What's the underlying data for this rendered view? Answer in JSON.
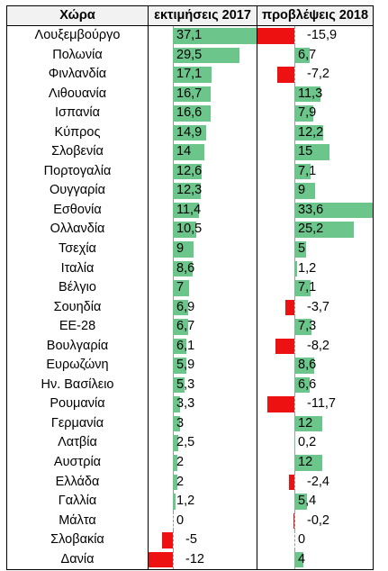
{
  "table": {
    "headers": [
      "Χώρα",
      "εκτιμήσεις 2017",
      "προβλέψεις 2018"
    ],
    "colors": {
      "positive": "#6cc58a",
      "negative": "#ee1111"
    },
    "rows": [
      {
        "country": "Λουξεμβούργο",
        "e2017": "37,1",
        "p2018": "-15,9"
      },
      {
        "country": "Πολωνία",
        "e2017": "29,5",
        "p2018": "6,7"
      },
      {
        "country": "Φινλανδία",
        "e2017": "17,1",
        "p2018": "-7,2"
      },
      {
        "country": "Λιθουανία",
        "e2017": "16,7",
        "p2018": "11,3"
      },
      {
        "country": "Ισπανία",
        "e2017": "16,6",
        "p2018": "7,9"
      },
      {
        "country": "Κύπρος",
        "e2017": "14,9",
        "p2018": "12,2"
      },
      {
        "country": "Σλοβενία",
        "e2017": "14",
        "p2018": "15"
      },
      {
        "country": "Πορτογαλία",
        "e2017": "12,6",
        "p2018": "7,1"
      },
      {
        "country": "Ουγγαρία",
        "e2017": "12,3",
        "p2018": "9"
      },
      {
        "country": "Εσθονία",
        "e2017": "11,4",
        "p2018": "33,6"
      },
      {
        "country": "Ολλανδία",
        "e2017": "10,5",
        "p2018": "25,2"
      },
      {
        "country": "Τσεχία",
        "e2017": "9",
        "p2018": "5"
      },
      {
        "country": "Ιταλία",
        "e2017": "8,6",
        "p2018": "1,2"
      },
      {
        "country": "Βέλγιο",
        "e2017": "7",
        "p2018": "7,1"
      },
      {
        "country": "Σουηδία",
        "e2017": "6,9",
        "p2018": "-3,7"
      },
      {
        "country": "ΕΕ-28",
        "e2017": "6,7",
        "p2018": "7,3"
      },
      {
        "country": "Βουλγαρία",
        "e2017": "6,1",
        "p2018": "-8,2"
      },
      {
        "country": "Ευρωζώνη",
        "e2017": "5,9",
        "p2018": "8,6"
      },
      {
        "country": "Ην. Βασίλειο",
        "e2017": "5,3",
        "p2018": "6,6"
      },
      {
        "country": "Ρουμανία",
        "e2017": "3,3",
        "p2018": "-11,7"
      },
      {
        "country": "Γερμανία",
        "e2017": "3",
        "p2018": "12"
      },
      {
        "country": "Λατβία",
        "e2017": "2,5",
        "p2018": "0,2"
      },
      {
        "country": "Αυστρία",
        "e2017": "2",
        "p2018": "12"
      },
      {
        "country": "Ελλάδα",
        "e2017": "2",
        "p2018": "-2,4"
      },
      {
        "country": "Γαλλία",
        "e2017": "1,2",
        "p2018": "5,4"
      },
      {
        "country": "Μάλτα",
        "e2017": "0",
        "p2018": "-0,2"
      },
      {
        "country": "Σλοβακία",
        "e2017": "-5",
        "p2018": "0"
      },
      {
        "country": "Δανία",
        "e2017": "-12",
        "p2018": "4"
      }
    ]
  }
}
